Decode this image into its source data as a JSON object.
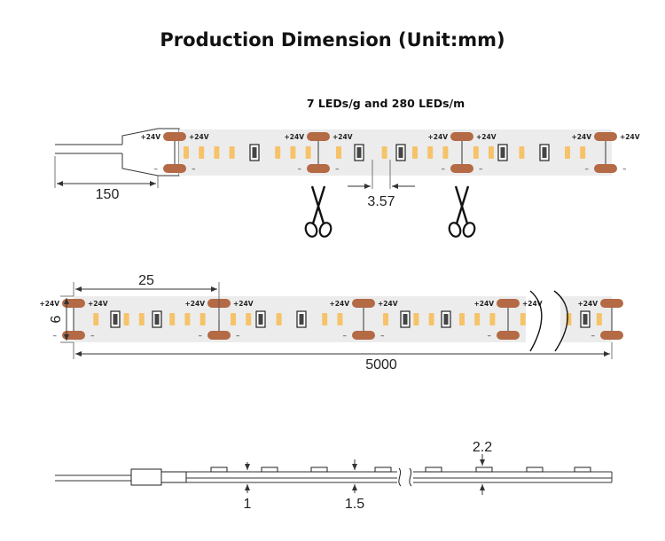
{
  "title": "Production Dimension (Unit:mm)",
  "subtitle": "7 LEDs/g and 280 LEDs/m",
  "pad_positive": "+24V",
  "pad_negative": "–",
  "dimensions": {
    "wire_length": "150",
    "led_pitch": "3.57",
    "cut_length": "25",
    "strip_width": "6",
    "total_length": "5000",
    "led_height": "2.2",
    "pcb_thickness": "1",
    "total_thickness": "1.5"
  },
  "icons": {
    "cut_mark": "scissors-icon",
    "break_mark": "break-wave-icon"
  },
  "colors": {
    "strip": "#ececec",
    "copper_pad": "#b36a45",
    "led_chip": "#f6c36a"
  }
}
